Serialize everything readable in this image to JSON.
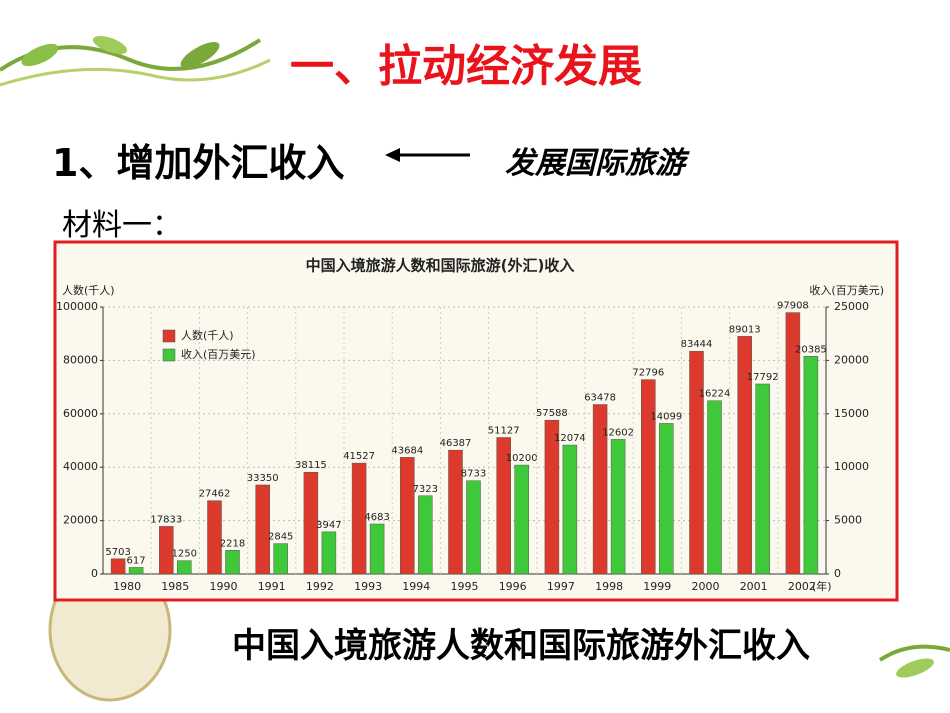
{
  "slide": {
    "title": "一、拉动经济发展",
    "subtitle": "1、增加外汇收入",
    "subtitle_target": "发展国际旅游",
    "material": "材料一：",
    "caption": "中国入境旅游人数和国际旅游外汇收入"
  },
  "chart_data": {
    "type": "bar",
    "title": "中国入境旅游人数和国际旅游(外汇)收入",
    "y_label": "人数(千人)",
    "y2_label": "收入(百万美元)",
    "x_unit": "(年)",
    "categories": [
      "1980",
      "1985",
      "1990",
      "1991",
      "1992",
      "1993",
      "1994",
      "1995",
      "1996",
      "1997",
      "1998",
      "1999",
      "2000",
      "2001",
      "2002"
    ],
    "series": [
      {
        "name": "人数(千人)",
        "color": "#dd3a2e",
        "values": [
          5703,
          17833,
          27462,
          33350,
          38115,
          41527,
          43684,
          46387,
          51127,
          57588,
          63478,
          72796,
          83444,
          89013,
          97908
        ]
      },
      {
        "name": "收入(百万美元)",
        "color": "#3ec83a",
        "axis": "y2",
        "values": [
          617,
          1250,
          2218,
          2845,
          3947,
          4683,
          7323,
          8733,
          10200,
          12074,
          12602,
          14099,
          16224,
          17792,
          20385
        ]
      }
    ],
    "ylim": [
      0,
      100000
    ],
    "yticks": [
      0,
      20000,
      40000,
      60000,
      80000,
      100000
    ],
    "y2lim": [
      0,
      25000
    ],
    "y2ticks": [
      0,
      5000,
      10000,
      15000,
      20000,
      25000
    ],
    "grid": true,
    "legend": "top-left"
  }
}
